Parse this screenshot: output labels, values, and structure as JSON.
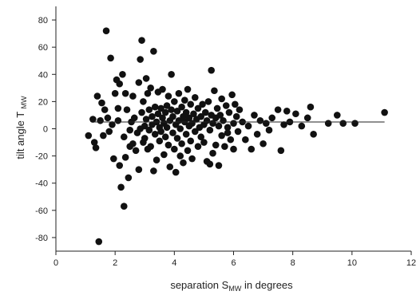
{
  "chart_data": {
    "type": "scatter",
    "title": "",
    "xlabel": "separation S",
    "xlabel_sub": "MW",
    "xlabel_suffix": " in degrees",
    "ylabel": "tilt angle T",
    "ylabel_sub": "MW",
    "xlim": [
      0,
      12
    ],
    "ylim": [
      -90,
      90
    ],
    "x_ticks": [
      0,
      2,
      4,
      6,
      8,
      10,
      12
    ],
    "y_ticks": [
      -80,
      -60,
      -40,
      -20,
      0,
      20,
      40,
      60,
      80
    ],
    "x_tick_labels": [
      "0",
      "2",
      "4",
      "6",
      "8",
      "10",
      "12"
    ],
    "y_tick_labels": [
      "-80",
      "-60",
      "-40",
      "-20",
      "0",
      "20",
      "40",
      "60",
      "80"
    ],
    "grid": false,
    "legend": "none",
    "marker_color": "#111111",
    "fit_line": {
      "x": [
        1.3,
        11.1
      ],
      "y": [
        5,
        5
      ]
    },
    "points": [
      [
        1.1,
        -5
      ],
      [
        1.25,
        7
      ],
      [
        1.3,
        -10
      ],
      [
        1.35,
        -14
      ],
      [
        1.4,
        24
      ],
      [
        1.45,
        -83
      ],
      [
        1.5,
        6
      ],
      [
        1.55,
        19
      ],
      [
        1.6,
        -5
      ],
      [
        1.65,
        14
      ],
      [
        1.7,
        72
      ],
      [
        1.75,
        8
      ],
      [
        1.8,
        -2
      ],
      [
        1.85,
        52
      ],
      [
        1.9,
        3
      ],
      [
        1.95,
        -22
      ],
      [
        2.0,
        26
      ],
      [
        2.05,
        36
      ],
      [
        2.1,
        6
      ],
      [
        2.1,
        15
      ],
      [
        2.15,
        -27
      ],
      [
        2.15,
        33
      ],
      [
        2.2,
        -43
      ],
      [
        2.25,
        40
      ],
      [
        2.3,
        -6
      ],
      [
        2.3,
        -57
      ],
      [
        2.35,
        -21
      ],
      [
        2.35,
        26
      ],
      [
        2.4,
        14
      ],
      [
        2.45,
        -36
      ],
      [
        2.5,
        -1
      ],
      [
        2.5,
        -13
      ],
      [
        2.55,
        5
      ],
      [
        2.6,
        24
      ],
      [
        2.6,
        -11
      ],
      [
        2.65,
        8
      ],
      [
        2.7,
        -16
      ],
      [
        2.75,
        -3
      ],
      [
        2.8,
        34
      ],
      [
        2.8,
        -30
      ],
      [
        2.85,
        51
      ],
      [
        2.85,
        0
      ],
      [
        2.9,
        65
      ],
      [
        2.9,
        12
      ],
      [
        2.95,
        -10
      ],
      [
        2.95,
        20
      ],
      [
        3.0,
        2
      ],
      [
        3.0,
        -7
      ],
      [
        3.05,
        37
      ],
      [
        3.05,
        7
      ],
      [
        3.1,
        -15
      ],
      [
        3.1,
        26
      ],
      [
        3.15,
        14
      ],
      [
        3.15,
        -1
      ],
      [
        3.2,
        30
      ],
      [
        3.2,
        -13
      ],
      [
        3.25,
        9
      ],
      [
        3.25,
        3
      ],
      [
        3.3,
        57
      ],
      [
        3.3,
        -31
      ],
      [
        3.35,
        16
      ],
      [
        3.35,
        -4
      ],
      [
        3.4,
        -23
      ],
      [
        3.4,
        5
      ],
      [
        3.45,
        27
      ],
      [
        3.45,
        11
      ],
      [
        3.5,
        1
      ],
      [
        3.5,
        -9
      ],
      [
        3.55,
        15
      ],
      [
        3.55,
        -2
      ],
      [
        3.6,
        8
      ],
      [
        3.6,
        29
      ],
      [
        3.65,
        -19
      ],
      [
        3.65,
        4
      ],
      [
        3.7,
        12
      ],
      [
        3.7,
        -6
      ],
      [
        3.75,
        17
      ],
      [
        3.75,
        1
      ],
      [
        3.8,
        24
      ],
      [
        3.8,
        -12
      ],
      [
        3.85,
        6
      ],
      [
        3.85,
        -28
      ],
      [
        3.9,
        40
      ],
      [
        3.9,
        14
      ],
      [
        3.95,
        -3
      ],
      [
        3.95,
        9
      ],
      [
        4.0,
        20
      ],
      [
        4.0,
        -15
      ],
      [
        4.05,
        3
      ],
      [
        4.05,
        -32
      ],
      [
        4.1,
        13
      ],
      [
        4.1,
        -7
      ],
      [
        4.15,
        26
      ],
      [
        4.15,
        6
      ],
      [
        4.2,
        -20
      ],
      [
        4.2,
        0
      ],
      [
        4.25,
        16
      ],
      [
        4.25,
        -11
      ],
      [
        4.3,
        9
      ],
      [
        4.3,
        -25
      ],
      [
        4.35,
        5
      ],
      [
        4.35,
        21
      ],
      [
        4.4,
        -4
      ],
      [
        4.4,
        12
      ],
      [
        4.45,
        29
      ],
      [
        4.45,
        -16
      ],
      [
        4.5,
        2
      ],
      [
        4.5,
        8
      ],
      [
        4.55,
        -9
      ],
      [
        4.55,
        18
      ],
      [
        4.6,
        -22
      ],
      [
        4.6,
        4
      ],
      [
        4.65,
        11
      ],
      [
        4.7,
        -2
      ],
      [
        4.7,
        23
      ],
      [
        4.75,
        7
      ],
      [
        4.8,
        -13
      ],
      [
        4.8,
        15
      ],
      [
        4.85,
        1
      ],
      [
        4.9,
        9
      ],
      [
        4.9,
        -6
      ],
      [
        4.95,
        18
      ],
      [
        5.0,
        3
      ],
      [
        5.0,
        -10
      ],
      [
        5.05,
        12
      ],
      [
        5.1,
        -24
      ],
      [
        5.1,
        6
      ],
      [
        5.15,
        20
      ],
      [
        5.2,
        -1
      ],
      [
        5.2,
        -26
      ],
      [
        5.25,
        43
      ],
      [
        5.25,
        10
      ],
      [
        5.3,
        -18
      ],
      [
        5.3,
        4
      ],
      [
        5.35,
        28
      ],
      [
        5.4,
        -12
      ],
      [
        5.4,
        8
      ],
      [
        5.45,
        15
      ],
      [
        5.5,
        -27
      ],
      [
        5.5,
        2
      ],
      [
        5.55,
        10
      ],
      [
        5.6,
        -5
      ],
      [
        5.6,
        22
      ],
      [
        5.65,
        6
      ],
      [
        5.7,
        -13
      ],
      [
        5.75,
        17
      ],
      [
        5.8,
        1
      ],
      [
        5.8,
        -3
      ],
      [
        5.85,
        12
      ],
      [
        5.9,
        -8
      ],
      [
        5.95,
        25
      ],
      [
        6.0,
        4
      ],
      [
        6.0,
        -15
      ],
      [
        6.05,
        18
      ],
      [
        6.1,
        9
      ],
      [
        6.15,
        -2
      ],
      [
        6.2,
        14
      ],
      [
        6.3,
        5
      ],
      [
        6.4,
        -8
      ],
      [
        6.5,
        2
      ],
      [
        6.6,
        -15
      ],
      [
        6.7,
        10
      ],
      [
        6.8,
        -4
      ],
      [
        6.9,
        6
      ],
      [
        7.0,
        -11
      ],
      [
        7.1,
        4
      ],
      [
        7.2,
        -1
      ],
      [
        7.3,
        8
      ],
      [
        7.5,
        14
      ],
      [
        7.6,
        -16
      ],
      [
        7.7,
        3
      ],
      [
        7.8,
        13
      ],
      [
        7.9,
        5
      ],
      [
        8.1,
        11
      ],
      [
        8.3,
        2
      ],
      [
        8.5,
        8
      ],
      [
        8.6,
        16
      ],
      [
        8.7,
        -4
      ],
      [
        9.2,
        4
      ],
      [
        9.5,
        10
      ],
      [
        9.7,
        4
      ],
      [
        10.1,
        4
      ],
      [
        11.1,
        12
      ]
    ]
  }
}
